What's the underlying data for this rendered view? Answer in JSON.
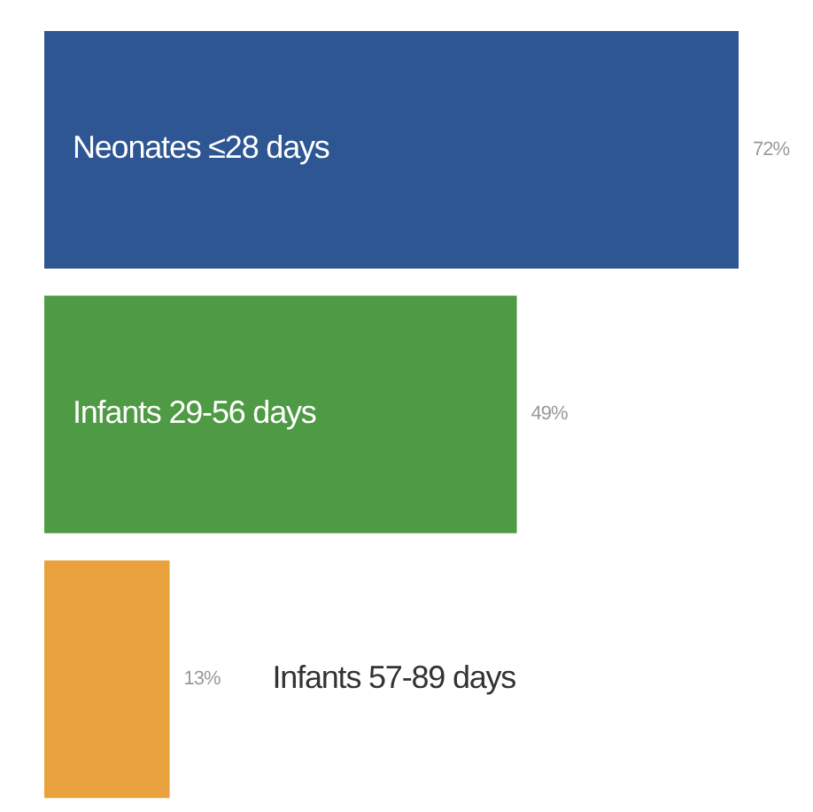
{
  "chart_data": {
    "type": "bar",
    "orientation": "horizontal",
    "categories": [
      "Neonates ≤28 days",
      "Infants 29-56 days",
      "Infants 57-89 days"
    ],
    "values": [
      72,
      49,
      13
    ],
    "value_labels": [
      "72%",
      "49%",
      "13%"
    ],
    "colors": [
      "#2d5693",
      "#4f9a44",
      "#e8a13c"
    ]
  }
}
